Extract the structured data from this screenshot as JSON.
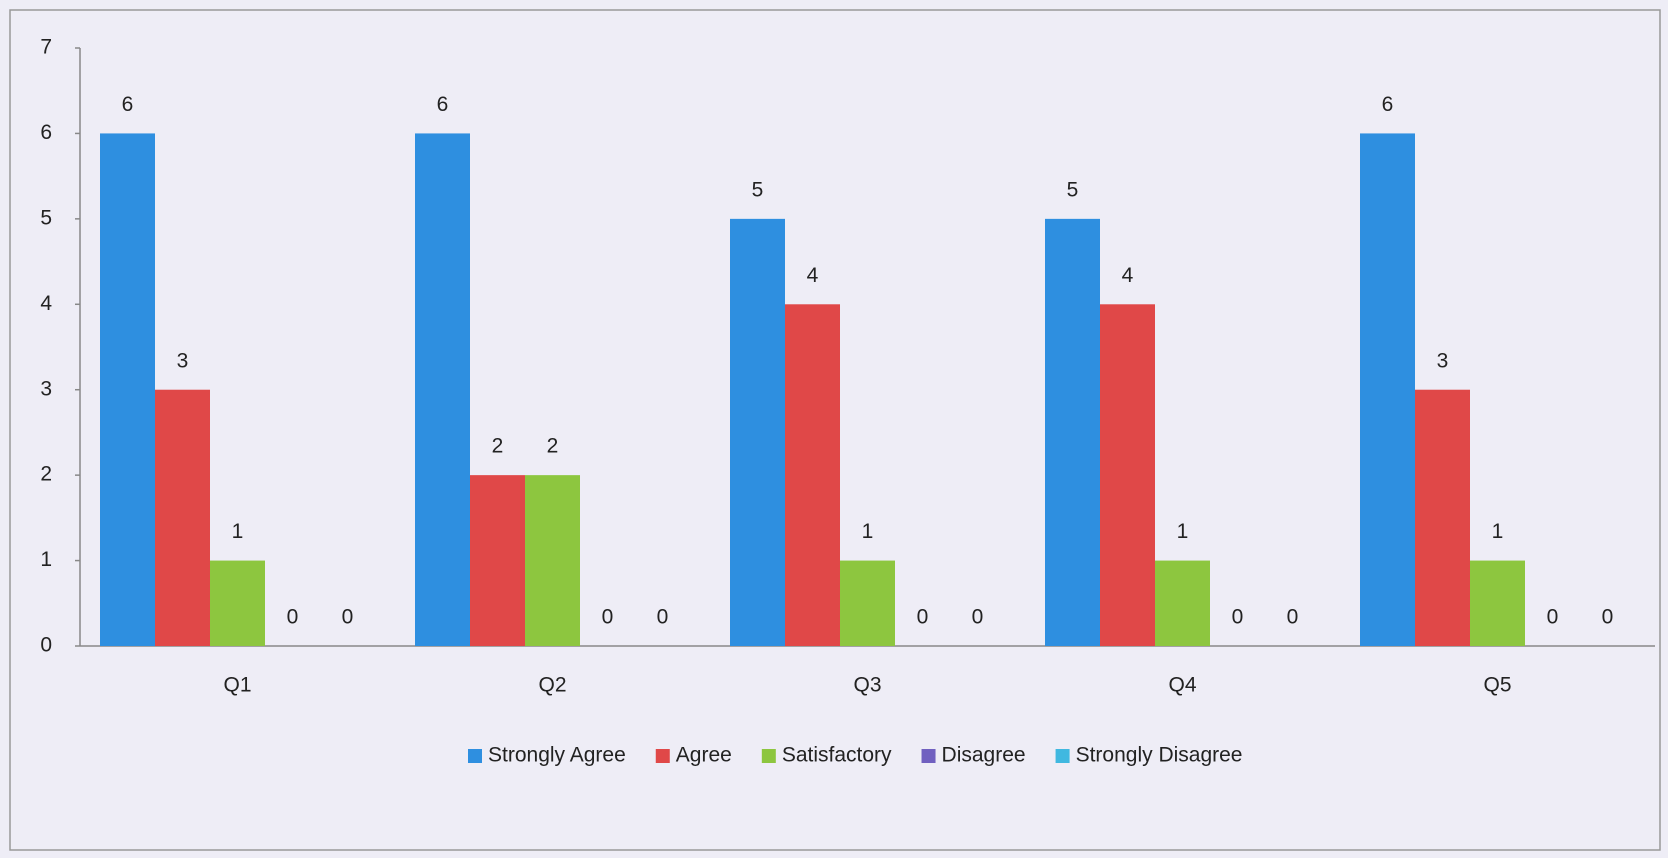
{
  "chart_data": {
    "type": "bar",
    "categories": [
      "Q1",
      "Q2",
      "Q3",
      "Q4",
      "Q5"
    ],
    "series": [
      {
        "name": "Strongly Agree",
        "color": "#2e8fe0",
        "values": [
          6,
          6,
          5,
          5,
          6
        ]
      },
      {
        "name": "Agree",
        "color": "#e04848",
        "values": [
          3,
          2,
          4,
          4,
          3
        ]
      },
      {
        "name": "Satisfactory",
        "color": "#8dc63f",
        "values": [
          1,
          2,
          1,
          1,
          1
        ]
      },
      {
        "name": "Disagree",
        "color": "#7060c0",
        "values": [
          0,
          0,
          0,
          0,
          0
        ]
      },
      {
        "name": "Strongly Disagree",
        "color": "#40b8e0",
        "values": [
          0,
          0,
          0,
          0,
          0
        ]
      }
    ],
    "ylim": [
      0,
      7
    ],
    "yticks": [
      0,
      1,
      2,
      3,
      4,
      5,
      6,
      7
    ],
    "grid": false,
    "legend": "bottom"
  }
}
